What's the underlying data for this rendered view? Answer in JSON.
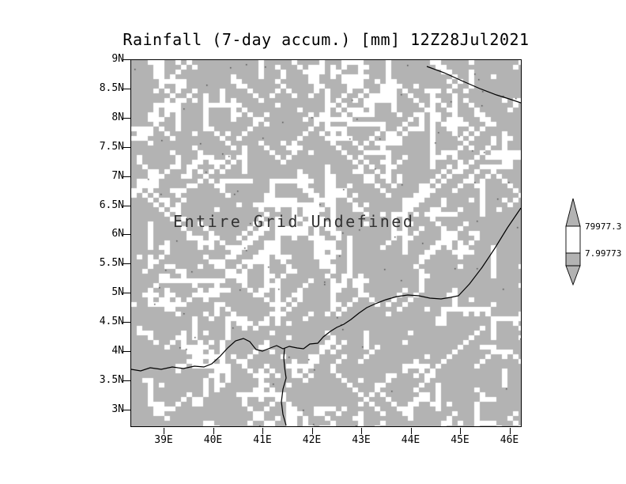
{
  "title": "Rainfall (7-day accum.) [mm] 12Z28Jul2021",
  "annotation": "Entire Grid Undefined",
  "axes": {
    "y_ticks": [
      "9N",
      "8.5N",
      "8N",
      "7.5N",
      "7N",
      "6.5N",
      "6N",
      "5.5N",
      "5N",
      "4.5N",
      "4N",
      "3.5N",
      "3N"
    ],
    "x_ticks": [
      "39E",
      "40E",
      "41E",
      "42E",
      "43E",
      "44E",
      "45E",
      "46E"
    ]
  },
  "colorbar": {
    "labels": [
      "79977.3",
      "7.99773"
    ]
  },
  "colors": {
    "grid_fill": "#b3b3b3",
    "speckle": "#ffffff",
    "coastline": "#000000",
    "annotation_text": "#333333"
  },
  "chart_data": {
    "type": "heatmap",
    "title": "Rainfall (7-day accum.) [mm] 12Z28Jul2021",
    "variable": "Rainfall (7-day accum.) [mm]",
    "valid_time": "12Z28Jul2021",
    "x_tick_labels": [
      "39E",
      "40E",
      "41E",
      "42E",
      "43E",
      "44E",
      "45E",
      "46E"
    ],
    "y_tick_labels": [
      "9N",
      "8.5N",
      "8N",
      "7.5N",
      "7N",
      "6.5N",
      "6N",
      "5.5N",
      "5N",
      "4.5N",
      "4N",
      "3.5N",
      "3N"
    ],
    "values": null,
    "status_annotation": "Entire Grid Undefined",
    "colorbar": {
      "position": "right",
      "tick_labels": [
        "79977.3",
        "7.99773"
      ]
    },
    "grid": false
  }
}
